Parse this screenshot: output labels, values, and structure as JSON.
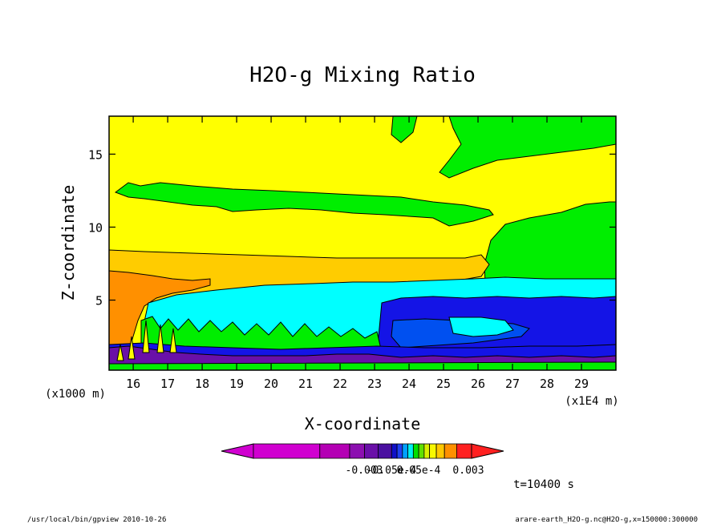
{
  "chart_data": {
    "type": "heatmap",
    "title": "H2O-g Mixing Ratio",
    "xlabel": "X-coordinate",
    "ylabel": "Z-coordinate",
    "x_unit_note": "(x1E4 m)",
    "y_unit_note": "(x1000 m)",
    "x_ticks": [
      16,
      17,
      18,
      19,
      20,
      21,
      22,
      23,
      24,
      25,
      26,
      27,
      28,
      29
    ],
    "y_ticks": [
      5,
      10,
      15
    ],
    "xlim": [
      15.3,
      30.0
    ],
    "ylim": [
      0.2,
      17.6
    ],
    "time_label": "t=10400 s",
    "colorbar": {
      "colors": [
        "#d000d0",
        "#b400b4",
        "#8c10b0",
        "#6a10a8",
        "#4a10a0",
        "#1010c8",
        "#2040f0",
        "#00a0ff",
        "#00f0f0",
        "#00e000",
        "#60e000",
        "#d8f000",
        "#f8f800",
        "#ffc800",
        "#ff9000",
        "#ff2020"
      ],
      "labels": [
        {
          "text": "-0.003",
          "value": -0.003
        },
        {
          "text": "-0.05e-4",
          "value": -5e-06
        },
        {
          "text": "0.05e-4",
          "value": 5e-06
        },
        {
          "text": "0.003",
          "value": 0.003
        }
      ]
    },
    "bands": [
      {
        "name": "top-yellow",
        "color": "#ffff00",
        "z_range": [
          12.5,
          17.6
        ]
      },
      {
        "name": "upper-green",
        "color": "#00ee00",
        "z_range": [
          11.0,
          13.0
        ]
      },
      {
        "name": "mid-yellow",
        "color": "#ffff00",
        "z_range": [
          8.5,
          11.0
        ]
      },
      {
        "name": "gold",
        "color": "#ffd000",
        "z_range": [
          6.5,
          8.5
        ]
      },
      {
        "name": "cyan",
        "color": "#00ffff",
        "z_range": [
          2.0,
          6.5
        ]
      },
      {
        "name": "blue",
        "color": "#1414e6",
        "z_range": [
          0.8,
          5.0
        ]
      },
      {
        "name": "purple",
        "color": "#6a10a8",
        "z_range": [
          0.4,
          1.8
        ]
      }
    ]
  },
  "footer": {
    "left": "/usr/local/bin/gpview  2010-10-26",
    "right": "arare-earth_H2O-g.nc@H2O-g,x=150000:300000"
  }
}
